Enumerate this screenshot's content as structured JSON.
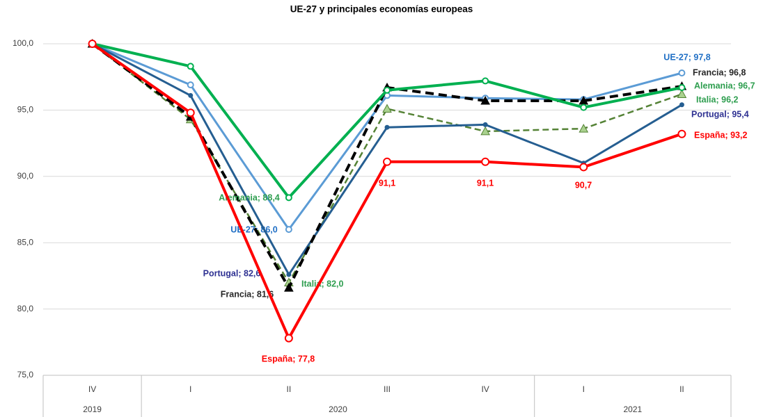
{
  "chart_data": {
    "type": "line",
    "title": "UE-27 y principales economías europeas",
    "categories": [
      "IV",
      "I",
      "II",
      "III",
      "IV",
      "I",
      "II"
    ],
    "year_groups": [
      {
        "label": "2019",
        "count": 1
      },
      {
        "label": "2020",
        "count": 4
      },
      {
        "label": "2021",
        "count": 2
      }
    ],
    "ylim": [
      75,
      100
    ],
    "yticks": [
      {
        "value": 75,
        "label": "75,0"
      },
      {
        "value": 80,
        "label": "80,0"
      },
      {
        "value": 85,
        "label": "85,0"
      },
      {
        "value": 90,
        "label": "90,0"
      },
      {
        "value": 95,
        "label": "95,0"
      },
      {
        "value": 100,
        "label": "100,0"
      }
    ],
    "grid": true,
    "series": [
      {
        "name": "Italia",
        "color": "#548235",
        "marker": "triangle",
        "marker_color": "#a9d18e",
        "dash": true,
        "label_color": "#2e9e4f",
        "values": [
          100,
          94.3,
          82.0,
          95.1,
          93.4,
          93.6,
          96.2
        ],
        "value_labels": [
          null,
          null,
          "Italia; 82,0",
          null,
          null,
          null,
          "Italia; 96,2"
        ]
      },
      {
        "name": "UE-27",
        "color": "#5b9bd5",
        "marker": "circle",
        "marker_color": "#ffffff",
        "dash": false,
        "label_color": "#1f6fc5",
        "values": [
          100,
          96.9,
          86.0,
          96.1,
          95.9,
          95.8,
          97.8
        ],
        "value_labels": [
          null,
          null,
          "UE-27; 86,0",
          null,
          null,
          null,
          "UE-27; 97,8"
        ]
      },
      {
        "name": "Portugal",
        "color": "#255e91",
        "marker": "dot",
        "marker_color": "#255e91",
        "dash": false,
        "label_color": "#2e3192",
        "values": [
          100,
          96.1,
          82.6,
          93.7,
          93.9,
          91.0,
          95.4
        ],
        "value_labels": [
          null,
          null,
          "Portugal; 82,6",
          null,
          null,
          null,
          "Portugal; 95,4"
        ]
      },
      {
        "name": "Francia",
        "color": "#000000",
        "marker": "triangle",
        "marker_color": "#000000",
        "dash": true,
        "label_color": "#262626",
        "values": [
          100,
          94.5,
          81.6,
          96.7,
          95.7,
          95.7,
          96.8
        ],
        "value_labels": [
          null,
          null,
          "Francia; 81,6",
          null,
          null,
          null,
          "Francia; 96,8"
        ]
      },
      {
        "name": "Alemania",
        "color": "#00b050",
        "marker": "circle",
        "marker_color": "#ffffff",
        "dash": false,
        "label_color": "#2e9e4f",
        "values": [
          100,
          98.3,
          88.4,
          96.5,
          97.2,
          95.2,
          96.7
        ],
        "value_labels": [
          null,
          null,
          "Alemania; 88,4",
          null,
          null,
          null,
          "Alemania; 96,7"
        ]
      },
      {
        "name": "España",
        "color": "#ff0000",
        "marker": "circle",
        "marker_color": "#ffffff",
        "dash": false,
        "label_color": "#ff0000",
        "values": [
          100,
          94.8,
          77.8,
          91.1,
          91.1,
          90.7,
          93.2
        ],
        "value_labels": [
          null,
          null,
          "España; 77,8",
          "91,1",
          "91,1",
          "90,7",
          "España; 93,2"
        ]
      }
    ]
  }
}
